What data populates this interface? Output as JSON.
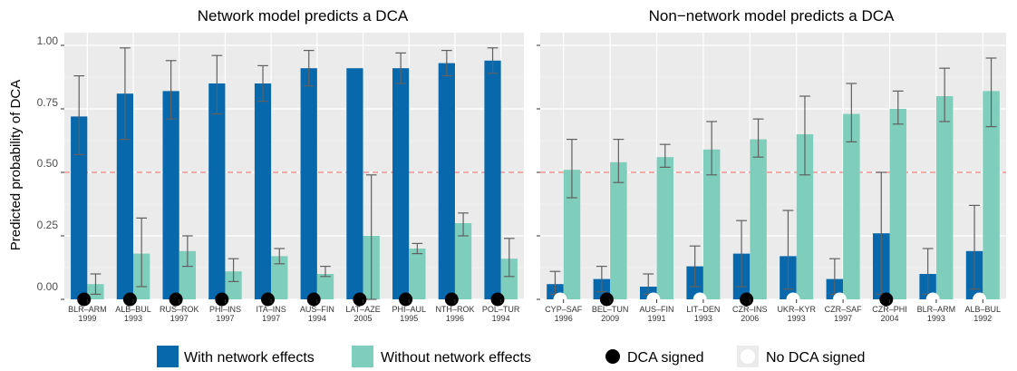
{
  "colors": {
    "with_network": "#0868ac",
    "without_network": "#7fcdbb",
    "panel_bg": "#ebebeb",
    "grid_major": "#ffffff",
    "threshold": "#f08080",
    "error_bar": "#606060",
    "dca_signed": "#000000",
    "no_dca_signed": "#ffffff"
  },
  "legend": {
    "with_network": "With network effects",
    "without_network": "Without network effects",
    "dca_signed": "DCA signed",
    "no_dca_signed": "No DCA signed"
  },
  "chart_data": [
    {
      "type": "bar",
      "title": "Network model predicts a DCA",
      "ylabel": "Predicted probability of DCA",
      "ylim": [
        0,
        1.05
      ],
      "yticks": [
        "0.00",
        "0.25",
        "0.50",
        "0.75",
        "1.00"
      ],
      "threshold": 0.5,
      "categories": [
        {
          "dyad": "BLR–ARM",
          "year": "1999"
        },
        {
          "dyad": "ALB–BUL",
          "year": "1993"
        },
        {
          "dyad": "RUS–ROK",
          "year": "1997"
        },
        {
          "dyad": "PHI–INS",
          "year": "1997"
        },
        {
          "dyad": "ITA–INS",
          "year": "1997"
        },
        {
          "dyad": "AUS–FIN",
          "year": "1994"
        },
        {
          "dyad": "LAT–AZE",
          "year": "2005"
        },
        {
          "dyad": "PHI–AUL",
          "year": "1995"
        },
        {
          "dyad": "NTH–ROK",
          "year": "1996"
        },
        {
          "dyad": "POL–TUR",
          "year": "1994"
        }
      ],
      "series": [
        {
          "name": "With network effects",
          "values": [
            0.72,
            0.81,
            0.82,
            0.85,
            0.85,
            0.91,
            0.91,
            0.91,
            0.93,
            0.94
          ],
          "lower": [
            0.57,
            0.63,
            0.71,
            0.73,
            0.78,
            0.84,
            null,
            0.85,
            0.88,
            0.89
          ],
          "upper": [
            0.88,
            0.99,
            0.94,
            0.96,
            0.92,
            0.98,
            null,
            0.97,
            0.98,
            0.99
          ]
        },
        {
          "name": "Without network effects",
          "values": [
            0.06,
            0.18,
            0.19,
            0.11,
            0.17,
            0.1,
            0.25,
            0.2,
            0.3,
            0.16
          ],
          "lower": [
            0.02,
            0.05,
            0.13,
            0.07,
            0.14,
            0.09,
            0.0,
            0.18,
            0.25,
            0.09
          ],
          "upper": [
            0.1,
            0.32,
            0.25,
            0.16,
            0.2,
            0.13,
            0.49,
            0.22,
            0.34,
            0.24
          ]
        }
      ],
      "dca_signed": [
        true,
        true,
        true,
        true,
        true,
        true,
        true,
        true,
        true,
        true
      ]
    },
    {
      "type": "bar",
      "title": "Non−network model predicts a DCA",
      "ylim": [
        0,
        1.05
      ],
      "threshold": 0.5,
      "categories": [
        {
          "dyad": "CYP–SAF",
          "year": "1996"
        },
        {
          "dyad": "BEL–TUN",
          "year": "2009"
        },
        {
          "dyad": "AUS–FIN",
          "year": "1991"
        },
        {
          "dyad": "LIT–DEN",
          "year": "1993"
        },
        {
          "dyad": "CZR–INS",
          "year": "2006"
        },
        {
          "dyad": "UKR–KYR",
          "year": "1993"
        },
        {
          "dyad": "CZR–SAF",
          "year": "1997"
        },
        {
          "dyad": "CZR–PHI",
          "year": "2004"
        },
        {
          "dyad": "BLR–ARM",
          "year": "1993"
        },
        {
          "dyad": "ALB–BUL",
          "year": "1992"
        }
      ],
      "series": [
        {
          "name": "With network effects",
          "values": [
            0.06,
            0.08,
            0.05,
            0.13,
            0.18,
            0.17,
            0.08,
            0.26,
            0.1,
            0.19
          ],
          "lower": [
            0.02,
            0.03,
            0.02,
            0.05,
            0.05,
            0.04,
            0.02,
            0.02,
            0.02,
            0.04
          ],
          "upper": [
            0.11,
            0.13,
            0.1,
            0.21,
            0.31,
            0.35,
            0.16,
            0.5,
            0.2,
            0.37
          ]
        },
        {
          "name": "Without network effects",
          "values": [
            0.51,
            0.54,
            0.56,
            0.59,
            0.63,
            0.65,
            0.73,
            0.75,
            0.8,
            0.82
          ],
          "lower": [
            0.4,
            0.46,
            0.52,
            0.49,
            0.56,
            0.49,
            0.62,
            0.69,
            0.7,
            0.68
          ],
          "upper": [
            0.63,
            0.63,
            0.61,
            0.7,
            0.71,
            0.8,
            0.85,
            0.82,
            0.91,
            0.95
          ]
        }
      ],
      "dca_signed": [
        false,
        true,
        false,
        false,
        true,
        false,
        false,
        true,
        false,
        false
      ]
    }
  ]
}
